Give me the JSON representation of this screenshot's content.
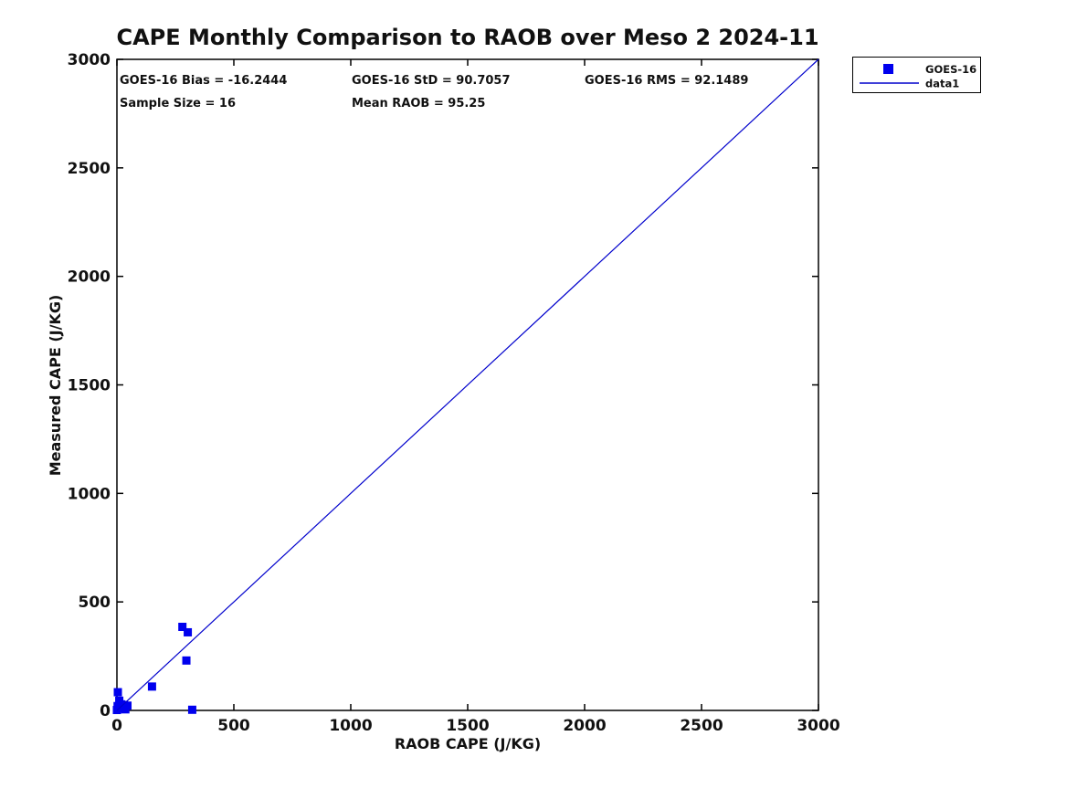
{
  "title": "CAPE Monthly Comparison to RAOB over Meso 2 2024-11",
  "stats": {
    "bias": "GOES-16 Bias = -16.2444",
    "std": "GOES-16 StD = 90.7057",
    "rms": "GOES-16 RMS = 92.1489",
    "sample_size": "Sample Size = 16",
    "mean_raob": "Mean RAOB = 95.25"
  },
  "legend": {
    "items": [
      {
        "label": "GOES-16",
        "symbol": "square-marker",
        "color": "#0000EE"
      },
      {
        "label": "data1",
        "symbol": "line",
        "color": "#0000CC"
      }
    ]
  },
  "colors": {
    "marker": "#0000EE",
    "line": "#0000CC",
    "axis": "#000000",
    "background": "#FFFFFF"
  },
  "chart_data": {
    "type": "scatter",
    "title": "CAPE Monthly Comparison to RAOB over Meso 2 2024-11",
    "xlabel": "RAOB CAPE (J/KG)",
    "ylabel": "Measured CAPE (J/KG)",
    "xlim": [
      0,
      3000
    ],
    "ylim": [
      0,
      3000
    ],
    "xticks": [
      0,
      500,
      1000,
      1500,
      2000,
      2500,
      3000
    ],
    "yticks": [
      0,
      500,
      1000,
      1500,
      2000,
      2500,
      3000
    ],
    "grid": false,
    "legend_position": "outside-top-right",
    "series": [
      {
        "name": "GOES-16",
        "type": "scatter",
        "marker": "filled-square",
        "color": "#0000EE",
        "points": [
          [
            280,
            385
          ],
          [
            303,
            360
          ],
          [
            297,
            230
          ],
          [
            150,
            110
          ],
          [
            322,
            3
          ],
          [
            4,
            84
          ],
          [
            0,
            2
          ],
          [
            3,
            20
          ],
          [
            8,
            18
          ],
          [
            10,
            45
          ],
          [
            14,
            8
          ],
          [
            18,
            28
          ],
          [
            24,
            15
          ],
          [
            30,
            25
          ],
          [
            36,
            5
          ],
          [
            45,
            22
          ]
        ]
      },
      {
        "name": "data1",
        "type": "line",
        "color": "#0000CC",
        "points": [
          [
            0,
            0
          ],
          [
            3000,
            3000
          ]
        ]
      }
    ]
  }
}
